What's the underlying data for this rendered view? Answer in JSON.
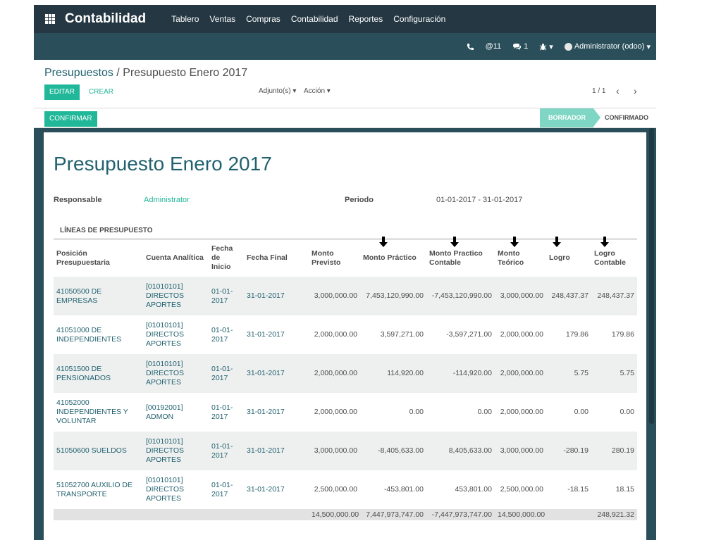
{
  "app": {
    "title": "Contabilidad",
    "menu": [
      "Tablero",
      "Ventas",
      "Compras",
      "Contabilidad",
      "Reportes",
      "Configuración"
    ]
  },
  "systray": {
    "phone_icon": "phone-icon",
    "mentions": "@11",
    "messages": "1",
    "user": "Administrator (odoo)"
  },
  "control_panel": {
    "breadcrumb_parent": "Presupuestos",
    "breadcrumb_sep": " / ",
    "breadcrumb_current": "Presupuesto Enero 2017",
    "edit_label": "EDITAR",
    "create_label": "CREAR",
    "attachments_label": "Adjunto(s) ▾",
    "action_label": "Acción ▾",
    "pager": "1 / 1"
  },
  "statusbar": {
    "confirm_label": "CONFIRMAR",
    "stages": [
      "BORRADOR",
      "CONFIRMADO"
    ]
  },
  "form": {
    "title": "Presupuesto Enero 2017",
    "responsable_label": "Responsable",
    "responsable_value": "Administrator",
    "periodo_label": "Periodo",
    "periodo_value": "01-01-2017 - 31-01-2017",
    "lines_title": "LÍNEAS DE PRESUPUESTO"
  },
  "table": {
    "headers": [
      "Posición Presupuestaria",
      "Cuenta Analítica",
      "Fecha de Inicio",
      "Fecha Final",
      "Monto Previsto",
      "Monto Práctico",
      "Monto Practico Contable",
      "Monto Teórico",
      "Logro",
      "Logro Contable"
    ],
    "rows": [
      [
        "41050500 DE EMPRESAS",
        "[01010101] DIRECTOS APORTES",
        "01-01-2017",
        "31-01-2017",
        "3,000,000.00",
        "7,453,120,990.00",
        "-7,453,120,990.00",
        "3,000,000.00",
        "248,437.37",
        "248,437.37"
      ],
      [
        "41051000 DE INDEPENDIENTES",
        "[01010101] DIRECTOS APORTES",
        "01-01-2017",
        "31-01-2017",
        "2,000,000.00",
        "3,597,271.00",
        "-3,597,271.00",
        "2,000,000.00",
        "179.86",
        "179.86"
      ],
      [
        "41051500 DE PENSIONADOS",
        "[01010101] DIRECTOS APORTES",
        "01-01-2017",
        "31-01-2017",
        "2,000,000.00",
        "114,920.00",
        "-114,920.00",
        "2,000,000.00",
        "5.75",
        "5.75"
      ],
      [
        "41052000 INDEPENDIENTES Y VOLUNTAR",
        "[00192001] ADMON",
        "01-01-2017",
        "31-01-2017",
        "2,000,000.00",
        "0.00",
        "0.00",
        "2,000,000.00",
        "0.00",
        "0.00"
      ],
      [
        "51050600 SUELDOS",
        "[01010101] DIRECTOS APORTES",
        "01-01-2017",
        "31-01-2017",
        "3,000,000.00",
        "-8,405,633.00",
        "8,405,633.00",
        "3,000,000.00",
        "-280.19",
        "280.19"
      ],
      [
        "51052700 AUXILIO DE TRANSPORTE",
        "[01010101] DIRECTOS APORTES",
        "01-01-2017",
        "31-01-2017",
        "2,500,000.00",
        "-453,801.00",
        "453,801.00",
        "2,500,000.00",
        "-18.15",
        "18.15"
      ]
    ],
    "totals": [
      "",
      "",
      "",
      "",
      "14,500,000.00",
      "7,447,973,747.00",
      "-7,447,973,747.00",
      "14,500,000.00",
      "",
      "248,921.32"
    ]
  }
}
